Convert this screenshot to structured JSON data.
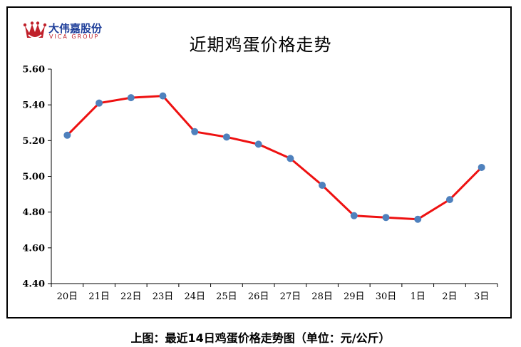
{
  "logo": {
    "name_cn": "大伟嘉股份",
    "name_en": "VICA GROUP",
    "icon": "crown-icon"
  },
  "caption": "上图：最近14日鸡蛋价格走势图（单位：元/公斤）",
  "colors": {
    "line": "#ee1111",
    "marker": "#4f81bd",
    "axis": "#000000",
    "logo_blue": "#1f3f9a",
    "logo_red": "#c0202a"
  },
  "chart_data": {
    "type": "line",
    "title": "近期鸡蛋价格走势",
    "xlabel": "",
    "ylabel": "",
    "categories": [
      "20日",
      "21日",
      "22日",
      "23日",
      "24日",
      "25日",
      "26日",
      "27日",
      "28日",
      "29日",
      "30日",
      "1日",
      "2日",
      "3日"
    ],
    "series": [
      {
        "values": [
          5.23,
          5.41,
          5.44,
          5.45,
          5.25,
          5.22,
          5.18,
          5.1,
          4.95,
          4.78,
          4.77,
          4.76,
          4.87,
          5.05
        ]
      }
    ],
    "ylim": [
      4.4,
      5.6
    ],
    "yticks": [
      "4.40",
      "4.60",
      "4.80",
      "5.00",
      "5.20",
      "5.40",
      "5.60"
    ],
    "grid": false,
    "legend": "none"
  }
}
